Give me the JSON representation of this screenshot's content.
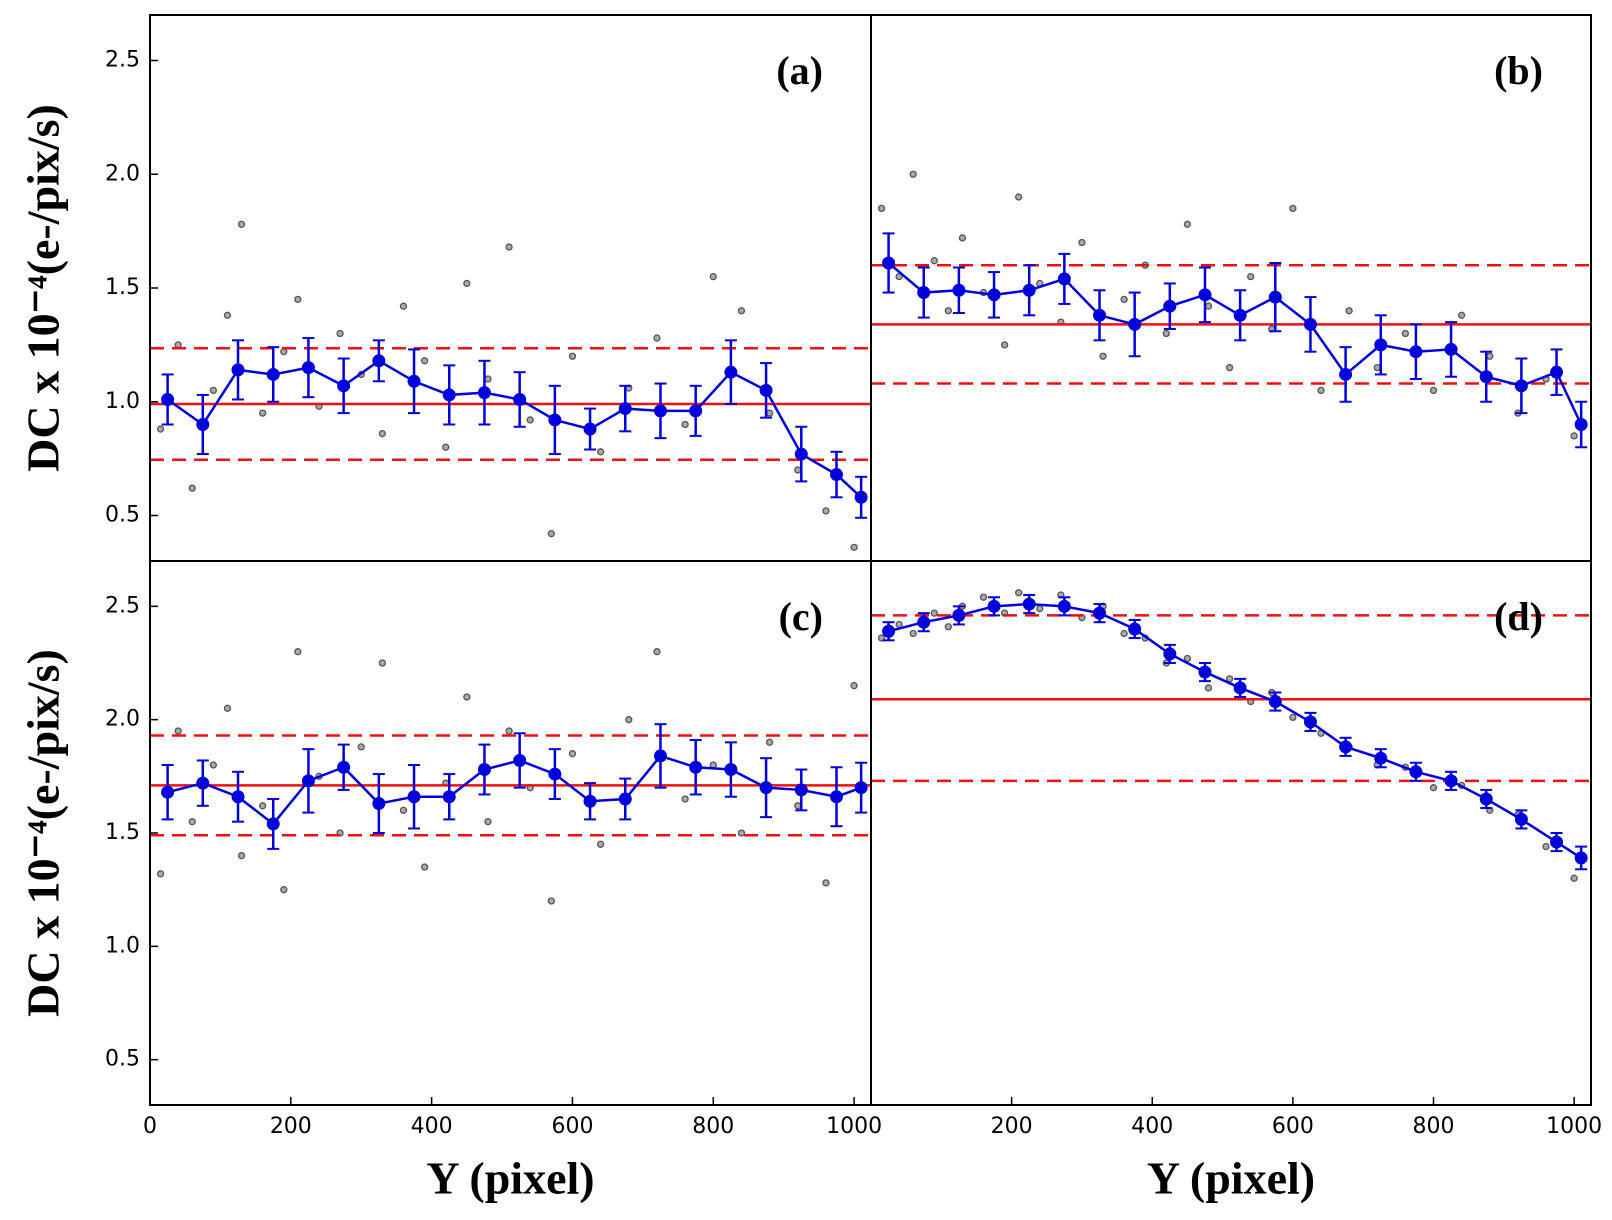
{
  "chart_data": [
    {
      "type": "line",
      "annotation": "(a)",
      "ylabel": "DC x 10⁻⁴(e-/pix/s)",
      "xlim": [
        0,
        1024
      ],
      "ylim": [
        0.3,
        2.7
      ],
      "yticks": [
        0.5,
        {
          "value": 1,
          "label": "1.0"
        },
        1.5,
        {
          "value": 2,
          "label": "2.0"
        },
        2.5
      ],
      "x": [
        25,
        75,
        125,
        175,
        225,
        275,
        325,
        375,
        425,
        475,
        525,
        575,
        625,
        675,
        725,
        775,
        825,
        875,
        925,
        975,
        1010
      ],
      "values": [
        1.01,
        0.9,
        1.14,
        1.12,
        1.15,
        1.07,
        1.18,
        1.09,
        1.03,
        1.04,
        1.01,
        0.92,
        0.88,
        0.97,
        0.96,
        0.96,
        1.13,
        1.05,
        0.77,
        0.68,
        0.58
      ],
      "errors": [
        0.11,
        0.13,
        0.13,
        0.12,
        0.13,
        0.12,
        0.09,
        0.14,
        0.13,
        0.14,
        0.12,
        0.15,
        0.09,
        0.1,
        0.12,
        0.11,
        0.14,
        0.12,
        0.12,
        0.1,
        0.09
      ],
      "color": "#0000dd",
      "hlines": [
        {
          "value": 0.99,
          "style": "solid"
        },
        {
          "value": 1.235,
          "style": "dashed"
        },
        {
          "value": 0.745,
          "style": "dashed"
        }
      ],
      "hline_color": "#ee1111",
      "scatter_x": [
        15,
        40,
        60,
        90,
        110,
        130,
        160,
        190,
        210,
        240,
        270,
        300,
        330,
        360,
        390,
        420,
        450,
        480,
        510,
        540,
        570,
        600,
        640,
        680,
        720,
        760,
        800,
        840,
        880,
        920,
        960,
        1000
      ],
      "scatter_y": [
        0.88,
        1.25,
        0.62,
        1.05,
        1.38,
        1.78,
        0.95,
        1.22,
        1.45,
        0.98,
        1.3,
        1.12,
        0.86,
        1.42,
        1.18,
        0.8,
        1.52,
        1.1,
        1.68,
        0.92,
        0.42,
        1.2,
        0.78,
        1.06,
        1.28,
        0.9,
        1.55,
        1.4,
        0.95,
        0.7,
        0.52,
        0.36
      ],
      "scatter_color": "#555555"
    },
    {
      "type": "line",
      "annotation": "(b)",
      "xlim": [
        0,
        1024
      ],
      "ylim": [
        0.3,
        2.7
      ],
      "x": [
        25,
        75,
        125,
        175,
        225,
        275,
        325,
        375,
        425,
        475,
        525,
        575,
        625,
        675,
        725,
        775,
        825,
        875,
        925,
        975,
        1010
      ],
      "values": [
        1.61,
        1.48,
        1.49,
        1.47,
        1.49,
        1.54,
        1.38,
        1.34,
        1.42,
        1.47,
        1.38,
        1.46,
        1.34,
        1.12,
        1.25,
        1.22,
        1.23,
        1.11,
        1.07,
        1.13,
        0.9
      ],
      "errors": [
        0.13,
        0.11,
        0.1,
        0.1,
        0.11,
        0.11,
        0.11,
        0.14,
        0.1,
        0.12,
        0.11,
        0.15,
        0.12,
        0.12,
        0.13,
        0.12,
        0.12,
        0.11,
        0.12,
        0.1,
        0.1
      ],
      "color": "#0000dd",
      "hlines": [
        {
          "value": 1.34,
          "style": "solid"
        },
        {
          "value": 1.6,
          "style": "dashed"
        },
        {
          "value": 1.08,
          "style": "dashed"
        }
      ],
      "hline_color": "#ee1111",
      "scatter_x": [
        15,
        40,
        60,
        90,
        110,
        130,
        160,
        190,
        210,
        240,
        270,
        300,
        330,
        360,
        390,
        420,
        450,
        480,
        510,
        540,
        570,
        600,
        640,
        680,
        720,
        760,
        800,
        840,
        880,
        920,
        960,
        1000
      ],
      "scatter_y": [
        1.85,
        1.55,
        2.0,
        1.62,
        1.4,
        1.72,
        1.48,
        1.25,
        1.9,
        1.52,
        1.35,
        1.7,
        1.2,
        1.45,
        1.6,
        1.3,
        1.78,
        1.42,
        1.15,
        1.55,
        1.32,
        1.85,
        1.05,
        1.4,
        1.15,
        1.3,
        1.05,
        1.38,
        1.2,
        0.95,
        1.1,
        0.85
      ],
      "scatter_color": "#555555"
    },
    {
      "type": "line",
      "annotation": "(c)",
      "ylabel": "DC x 10⁻⁴(e-/pix/s)",
      "xlabel": "Y (pixel)",
      "xlim": [
        0,
        1024
      ],
      "ylim": [
        0.3,
        2.7
      ],
      "xticks": [
        0,
        200,
        400,
        600,
        800,
        1000
      ],
      "yticks": [
        0.5,
        {
          "value": 1,
          "label": "1.0"
        },
        1.5,
        {
          "value": 2,
          "label": "2.0"
        },
        2.5
      ],
      "x": [
        25,
        75,
        125,
        175,
        225,
        275,
        325,
        375,
        425,
        475,
        525,
        575,
        625,
        675,
        725,
        775,
        825,
        875,
        925,
        975,
        1010
      ],
      "values": [
        1.68,
        1.72,
        1.66,
        1.54,
        1.73,
        1.79,
        1.63,
        1.66,
        1.66,
        1.78,
        1.82,
        1.76,
        1.64,
        1.65,
        1.84,
        1.79,
        1.78,
        1.7,
        1.69,
        1.66,
        1.7
      ],
      "errors": [
        0.12,
        0.1,
        0.11,
        0.11,
        0.14,
        0.1,
        0.13,
        0.14,
        0.1,
        0.11,
        0.12,
        0.11,
        0.08,
        0.09,
        0.14,
        0.12,
        0.12,
        0.13,
        0.09,
        0.13,
        0.11
      ],
      "color": "#0000dd",
      "hlines": [
        {
          "value": 1.71,
          "style": "solid"
        },
        {
          "value": 1.93,
          "style": "dashed"
        },
        {
          "value": 1.49,
          "style": "dashed"
        }
      ],
      "hline_color": "#ee1111",
      "scatter_x": [
        15,
        40,
        60,
        90,
        110,
        130,
        160,
        190,
        210,
        240,
        270,
        300,
        330,
        360,
        390,
        420,
        450,
        480,
        510,
        540,
        570,
        600,
        640,
        680,
        720,
        760,
        800,
        840,
        880,
        920,
        960,
        1000
      ],
      "scatter_y": [
        1.32,
        1.95,
        1.55,
        1.8,
        2.05,
        1.4,
        1.62,
        1.25,
        2.3,
        1.75,
        1.5,
        1.88,
        2.25,
        1.6,
        1.35,
        1.72,
        2.1,
        1.55,
        1.95,
        1.7,
        1.2,
        1.85,
        1.45,
        2.0,
        2.3,
        1.65,
        1.8,
        1.5,
        1.9,
        1.62,
        1.28,
        2.15
      ],
      "scatter_color": "#555555"
    },
    {
      "type": "line",
      "annotation": "(d)",
      "xlabel": "Y (pixel)",
      "xlim": [
        0,
        1024
      ],
      "ylim": [
        0.3,
        2.7
      ],
      "xticks": [
        200,
        400,
        600,
        800,
        1000
      ],
      "x": [
        25,
        75,
        125,
        175,
        225,
        275,
        325,
        375,
        425,
        475,
        525,
        575,
        625,
        675,
        725,
        775,
        825,
        875,
        925,
        975,
        1010
      ],
      "values": [
        2.39,
        2.43,
        2.46,
        2.5,
        2.51,
        2.5,
        2.47,
        2.4,
        2.29,
        2.21,
        2.14,
        2.08,
        1.99,
        1.88,
        1.83,
        1.77,
        1.73,
        1.65,
        1.56,
        1.46,
        1.39
      ],
      "errors": [
        0.04,
        0.04,
        0.04,
        0.04,
        0.04,
        0.04,
        0.04,
        0.04,
        0.04,
        0.04,
        0.04,
        0.04,
        0.04,
        0.04,
        0.04,
        0.04,
        0.04,
        0.04,
        0.04,
        0.04,
        0.05
      ],
      "color": "#0000dd",
      "hlines": [
        {
          "value": 2.09,
          "style": "solid"
        },
        {
          "value": 2.46,
          "style": "dashed"
        },
        {
          "value": 1.73,
          "style": "dashed"
        }
      ],
      "hline_color": "#ee1111",
      "scatter_x": [
        15,
        40,
        60,
        90,
        110,
        130,
        160,
        190,
        210,
        240,
        270,
        300,
        330,
        360,
        390,
        420,
        450,
        480,
        510,
        540,
        570,
        600,
        640,
        680,
        720,
        760,
        800,
        840,
        880,
        920,
        960,
        1000
      ],
      "scatter_y": [
        2.36,
        2.42,
        2.38,
        2.47,
        2.41,
        2.5,
        2.54,
        2.47,
        2.56,
        2.49,
        2.55,
        2.45,
        2.5,
        2.38,
        2.36,
        2.25,
        2.27,
        2.14,
        2.18,
        2.08,
        2.12,
        2.01,
        1.94,
        1.88,
        1.8,
        1.79,
        1.7,
        1.71,
        1.6,
        1.58,
        1.44,
        1.3
      ],
      "scatter_color": "#555555"
    }
  ]
}
